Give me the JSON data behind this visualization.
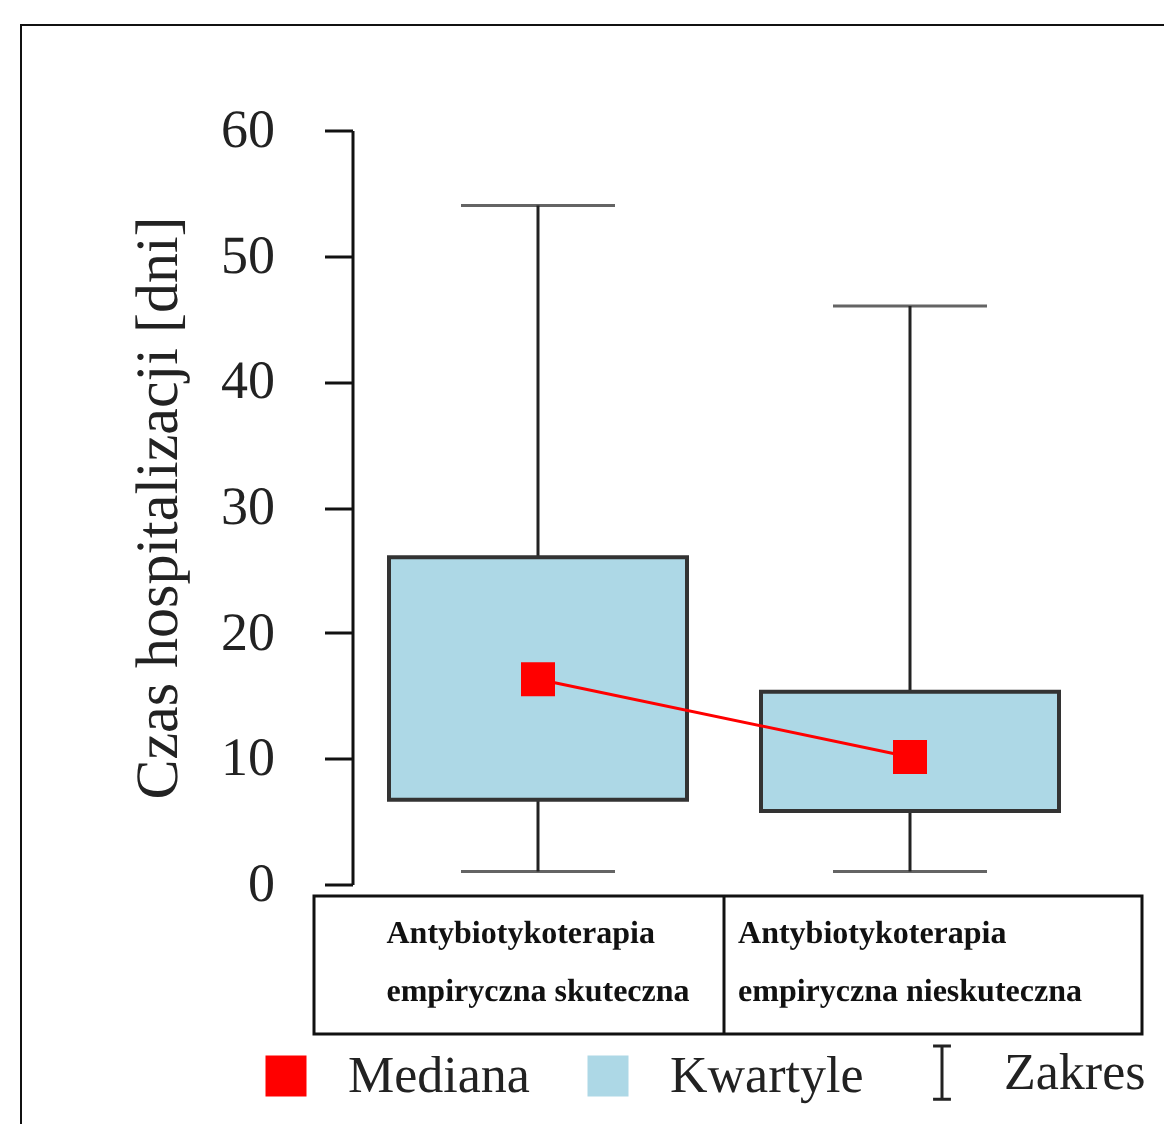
{
  "chart_data": {
    "type": "box",
    "ylabel": "Czas hospitalizacji [dni]",
    "categories": [
      "Antybiotykoterapia empiryczna skuteczna",
      "Antybiotykoterapia empiryczna nieskuteczna"
    ],
    "series": [
      {
        "name": "Mediana",
        "type": "line",
        "color": "#ff0000",
        "values": [
          16.3,
          10.1
        ]
      },
      {
        "name": "Kwartyle",
        "type": "box",
        "color": "#add8e6",
        "boxes": [
          {
            "low": 1,
            "q1": 6.7,
            "median": 16.3,
            "q3": 26,
            "high": 54
          },
          {
            "low": 1,
            "q1": 5.8,
            "median": 10.1,
            "q3": 15.3,
            "high": 46
          }
        ]
      }
    ],
    "ylim": [
      0,
      60
    ],
    "yticks": [
      0,
      10,
      20,
      30,
      40,
      50,
      60
    ],
    "legend": "bottom",
    "annotations": [
      "Zakres"
    ]
  }
}
